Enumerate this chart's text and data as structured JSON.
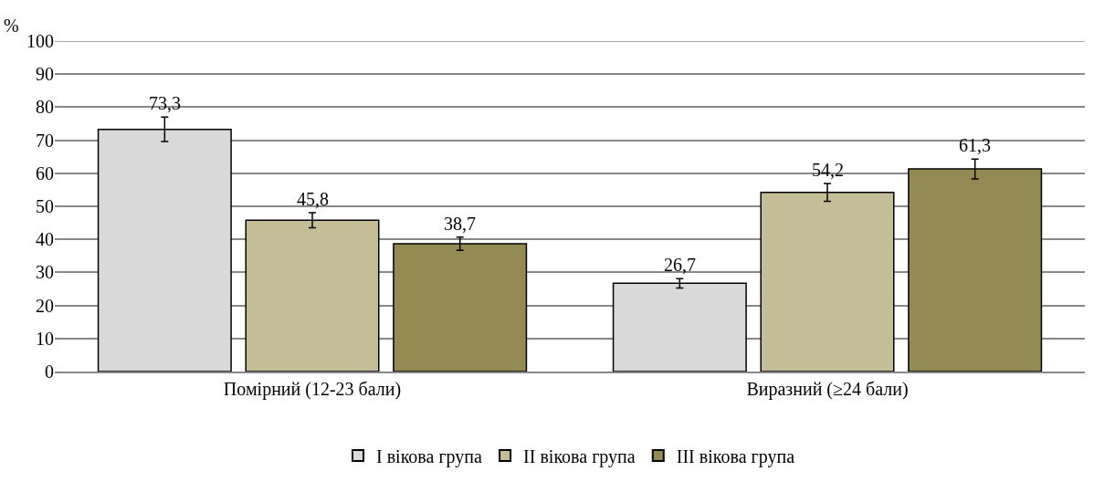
{
  "chart_data": {
    "type": "bar",
    "ylabel": "%",
    "categories": [
      "Помірний (12-23 бали)",
      "Виразний (≥24 бали)"
    ],
    "series": [
      {
        "name": "I вікова група",
        "color": "#d9d9d9",
        "values": [
          73.3,
          26.7
        ],
        "errors": [
          3.7,
          1.4
        ],
        "value_labels": [
          "73,3",
          "26,7"
        ]
      },
      {
        "name": "II вікова група",
        "color": "#c4bd97",
        "values": [
          45.8,
          54.2
        ],
        "errors": [
          2.3,
          2.7
        ],
        "value_labels": [
          "45,8",
          "54,2"
        ]
      },
      {
        "name": "III вікова група",
        "color": "#948a54",
        "values": [
          38.7,
          61.3
        ],
        "errors": [
          2.0,
          3.0
        ],
        "value_labels": [
          "38,7",
          "61,3"
        ]
      }
    ],
    "ylim": [
      0,
      100
    ],
    "yticks": [
      0,
      10,
      20,
      30,
      40,
      50,
      60,
      70,
      80,
      90,
      100
    ],
    "grid": "y",
    "legend": "bottom"
  }
}
